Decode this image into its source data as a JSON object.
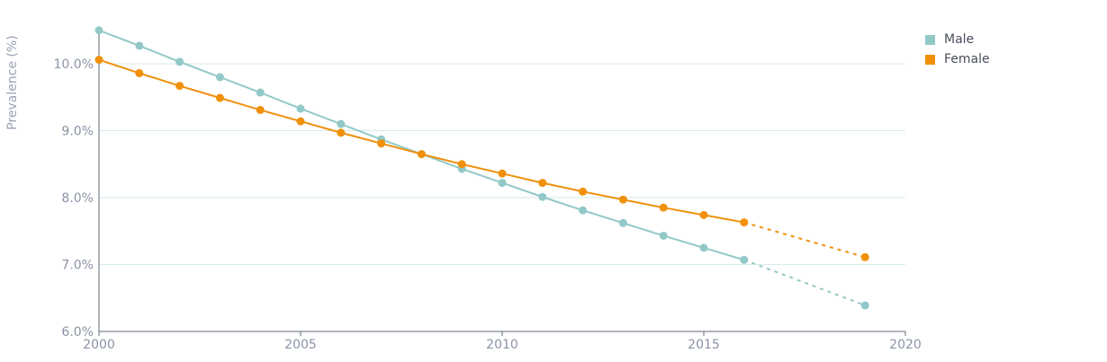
{
  "chart_data": {
    "type": "line",
    "title": "",
    "xlabel": "",
    "ylabel": "Prevalence (%)",
    "xlim": [
      2000,
      2020
    ],
    "ylim": [
      6.0,
      10.4
    ],
    "xticks": [
      2000,
      2005,
      2010,
      2015,
      2020
    ],
    "yticks": [
      6.0,
      7.0,
      8.0,
      9.0,
      10.0
    ],
    "xtick_labels": [
      "2000",
      "2005",
      "2010",
      "2015",
      "2020"
    ],
    "ytick_labels": [
      "6.0%",
      "7.0%",
      "8.0%",
      "9.0%",
      "10.0%"
    ],
    "grid": true,
    "legend_position": "top-right",
    "series": [
      {
        "name": "Male",
        "color": "#92c9c8",
        "x": [
          2000,
          2001,
          2002,
          2003,
          2004,
          2005,
          2006,
          2007,
          2008,
          2009,
          2010,
          2011,
          2012,
          2013,
          2014,
          2015,
          2016
        ],
        "values": [
          10.5,
          10.27,
          10.03,
          9.8,
          9.57,
          9.33,
          9.1,
          8.87,
          8.65,
          8.43,
          8.22,
          8.01,
          7.81,
          7.62,
          7.43,
          7.25,
          7.07
        ],
        "projection_x": [
          2019
        ],
        "projection_values": [
          6.39
        ]
      },
      {
        "name": "Female",
        "color": "#f0900b",
        "x": [
          2000,
          2001,
          2002,
          2003,
          2004,
          2005,
          2006,
          2007,
          2008,
          2009,
          2010,
          2011,
          2012,
          2013,
          2014,
          2015,
          2016
        ],
        "values": [
          10.06,
          9.86,
          9.67,
          9.49,
          9.31,
          9.14,
          8.97,
          8.81,
          8.65,
          8.5,
          8.36,
          8.22,
          8.09,
          7.97,
          7.85,
          7.74,
          7.63
        ],
        "projection_x": [
          2019
        ],
        "projection_values": [
          7.11
        ]
      }
    ]
  }
}
